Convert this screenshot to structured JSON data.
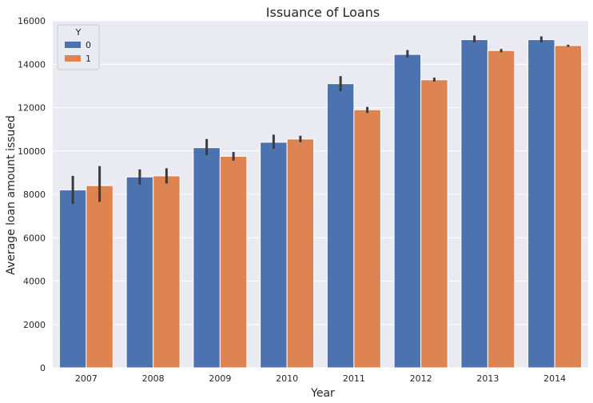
{
  "chart_data": {
    "type": "bar",
    "title": "Issuance of Loans",
    "xlabel": "Year",
    "ylabel": "Average loan amount issued",
    "categories": [
      "2007",
      "2008",
      "2009",
      "2010",
      "2011",
      "2012",
      "2013",
      "2014"
    ],
    "series": [
      {
        "name": "0",
        "color": "#4c72b0",
        "values": [
          8200,
          8800,
          10150,
          10400,
          13100,
          14450,
          15130,
          15130
        ],
        "error_low": [
          7550,
          8450,
          9800,
          10100,
          12750,
          14300,
          15000,
          15000
        ],
        "error_high": [
          8850,
          9150,
          10550,
          10750,
          13450,
          14650,
          15320,
          15280
        ]
      },
      {
        "name": "1",
        "color": "#dd8452",
        "values": [
          8400,
          8850,
          9750,
          10550,
          11900,
          13280,
          14630,
          14860
        ],
        "error_low": [
          7650,
          8500,
          9550,
          10400,
          11750,
          13200,
          14550,
          14800
        ],
        "error_high": [
          9300,
          9200,
          9950,
          10700,
          12030,
          13380,
          14700,
          14900
        ]
      }
    ],
    "ylim": [
      0,
      16000
    ],
    "yticks": [
      0,
      2000,
      4000,
      6000,
      8000,
      10000,
      12000,
      14000,
      16000
    ],
    "grid": true,
    "legend": {
      "title": "Y",
      "placement": "top-left"
    },
    "background": "#eaeaf2",
    "errorbar_color": "#3b3b3b"
  }
}
